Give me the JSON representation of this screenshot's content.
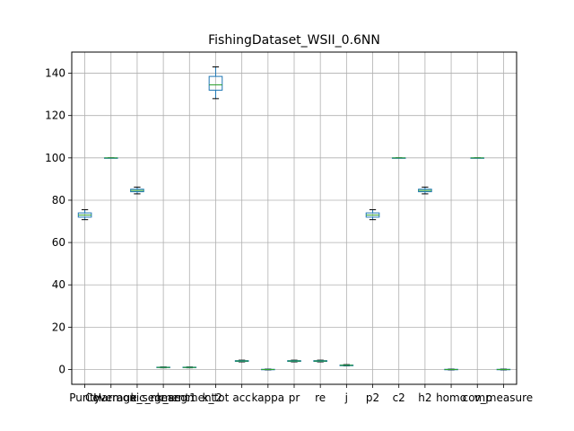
{
  "chart_data": {
    "type": "box",
    "title": "FishingDataset_WSII_0.6NN",
    "xlabel": "",
    "ylabel": "",
    "ylim": [
      -7,
      150
    ],
    "yticks": [
      0,
      20,
      40,
      60,
      80,
      100,
      120,
      140
    ],
    "grid": true,
    "colors": {
      "box": "#1f77b4",
      "median": "#2ca02c",
      "whisker": "#000000",
      "grid": "#b0b0b0"
    },
    "categories": [
      "Purity",
      "Coverage",
      "Harmonic_mean",
      "k_segment1",
      "k_segment2",
      "k_tot",
      "acc",
      "kappa",
      "pr",
      "re",
      "j",
      "p2",
      "c2",
      "h2",
      "homo",
      "comp",
      "v_measure"
    ],
    "boxes": [
      {
        "whislo": 70.8,
        "q1": 72.0,
        "med": 73.0,
        "q3": 74.0,
        "whishi": 75.5
      },
      {
        "whislo": 100,
        "q1": 100,
        "med": 100,
        "q3": 100,
        "whishi": 100
      },
      {
        "whislo": 83.0,
        "q1": 84.0,
        "med": 84.6,
        "q3": 85.2,
        "whishi": 86.2
      },
      {
        "whislo": 0.8,
        "q1": 0.9,
        "med": 1.0,
        "q3": 1.1,
        "whishi": 1.2
      },
      {
        "whislo": 0.8,
        "q1": 0.9,
        "med": 1.0,
        "q3": 1.1,
        "whishi": 1.2
      },
      {
        "whislo": 128,
        "q1": 132,
        "med": 134.5,
        "q3": 138.5,
        "whishi": 143
      },
      {
        "whislo": 3.6,
        "q1": 3.8,
        "med": 4.0,
        "q3": 4.2,
        "whishi": 4.4
      },
      {
        "whislo": -0.2,
        "q1": -0.1,
        "med": 0.0,
        "q3": 0.1,
        "whishi": 0.2
      },
      {
        "whislo": 3.6,
        "q1": 3.8,
        "med": 4.0,
        "q3": 4.2,
        "whishi": 4.4
      },
      {
        "whislo": 3.6,
        "q1": 3.8,
        "med": 4.0,
        "q3": 4.2,
        "whishi": 4.4
      },
      {
        "whislo": 1.7,
        "q1": 1.8,
        "med": 2.0,
        "q3": 2.1,
        "whishi": 2.3
      },
      {
        "whislo": 70.8,
        "q1": 72.0,
        "med": 73.0,
        "q3": 74.0,
        "whishi": 75.5
      },
      {
        "whislo": 100,
        "q1": 100,
        "med": 100,
        "q3": 100,
        "whishi": 100
      },
      {
        "whislo": 83.0,
        "q1": 84.0,
        "med": 84.6,
        "q3": 85.2,
        "whishi": 86.2
      },
      {
        "whislo": -0.2,
        "q1": -0.1,
        "med": 0.0,
        "q3": 0.1,
        "whishi": 0.2
      },
      {
        "whislo": 100,
        "q1": 100,
        "med": 100,
        "q3": 100,
        "whishi": 100
      },
      {
        "whislo": -0.2,
        "q1": -0.1,
        "med": 0.0,
        "q3": 0.1,
        "whishi": 0.2
      }
    ]
  }
}
